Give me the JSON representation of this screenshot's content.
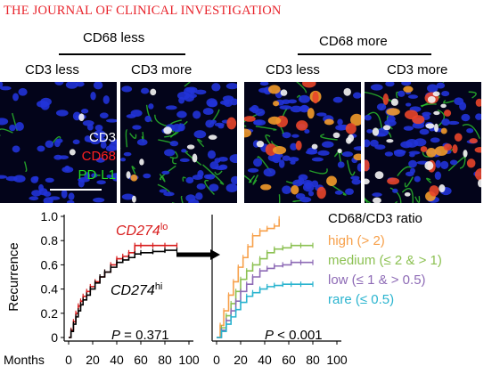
{
  "header": {
    "journal": "THE JOURNAL OF CLINICAL INVESTIGATION"
  },
  "groups": [
    {
      "label": "CD68 less",
      "columns": [
        "CD3 less",
        "CD3 more"
      ]
    },
    {
      "label": "CD68 more",
      "columns": [
        "CD3 less",
        "CD3 more"
      ]
    }
  ],
  "legend_channels": [
    {
      "label": "CD3",
      "color": "#ffffff"
    },
    {
      "label": "CD68",
      "color": "#ff2020"
    },
    {
      "label": "PD-L1",
      "color": "#22dd22"
    }
  ],
  "colors": {
    "journal": "#e8232b",
    "cd274lo": "#d81c1c",
    "cd274hi": "#000000",
    "high": "#f7a04a",
    "medium": "#8cc152",
    "low": "#8e6bb6",
    "rare": "#2ab4cf"
  },
  "chart_data": [
    {
      "type": "line",
      "subtype": "kaplan-meier",
      "ylabel": "Recurrence",
      "xlabel": "Months",
      "xlim": [
        0,
        100
      ],
      "ylim": [
        0,
        1.0
      ],
      "xticks": [
        "0",
        "20",
        "40",
        "60",
        "80",
        "100"
      ],
      "yticks": [
        "0",
        "0.2",
        "0.4",
        "0.6",
        "0.8",
        "1.0"
      ],
      "annotation": {
        "p_label": "P",
        "p_value": "= 0.371"
      },
      "series": [
        {
          "name": "CD274lo",
          "name_base": "CD274",
          "name_sup": "lo",
          "color": "#d81c1c",
          "x": [
            0,
            2,
            4,
            6,
            8,
            10,
            12,
            15,
            18,
            22,
            26,
            30,
            35,
            40,
            45,
            50,
            55,
            60,
            70,
            80,
            90
          ],
          "y": [
            0,
            0.06,
            0.13,
            0.2,
            0.26,
            0.3,
            0.34,
            0.38,
            0.42,
            0.46,
            0.5,
            0.54,
            0.6,
            0.65,
            0.67,
            0.7,
            0.76,
            0.76,
            0.76,
            0.76,
            0.76
          ]
        },
        {
          "name": "CD274hi",
          "name_base": "CD274",
          "name_sup": "hi",
          "color": "#000000",
          "x": [
            0,
            2,
            4,
            6,
            8,
            10,
            12,
            15,
            18,
            22,
            26,
            30,
            35,
            40,
            45,
            50,
            55,
            60,
            70,
            80,
            90
          ],
          "y": [
            0,
            0.05,
            0.11,
            0.17,
            0.22,
            0.27,
            0.31,
            0.35,
            0.4,
            0.45,
            0.5,
            0.54,
            0.58,
            0.62,
            0.64,
            0.66,
            0.69,
            0.7,
            0.71,
            0.72,
            0.72
          ]
        }
      ]
    },
    {
      "type": "line",
      "subtype": "kaplan-meier",
      "xlim": [
        0,
        100
      ],
      "ylim": [
        0,
        1.0
      ],
      "xticks": [
        "0",
        "20",
        "40",
        "60",
        "80",
        "100"
      ],
      "annotation": {
        "p_label": "P",
        "p_value": "< 0.001"
      },
      "legend_title": "CD68/CD3 ratio",
      "series": [
        {
          "name": "high (> 2)",
          "color": "#f7a04a",
          "x": [
            0,
            3,
            6,
            10,
            14,
            18,
            22,
            26,
            30,
            36,
            42,
            48,
            52
          ],
          "y": [
            0,
            0.1,
            0.22,
            0.35,
            0.46,
            0.58,
            0.66,
            0.75,
            0.84,
            0.88,
            0.9,
            0.92,
            0.98
          ]
        },
        {
          "name": "medium (≤ 2 & > 1)",
          "color": "#8cc152",
          "x": [
            0,
            4,
            8,
            12,
            16,
            20,
            25,
            30,
            36,
            42,
            48,
            55,
            62,
            70,
            80
          ],
          "y": [
            0,
            0.08,
            0.18,
            0.28,
            0.38,
            0.48,
            0.55,
            0.6,
            0.65,
            0.7,
            0.73,
            0.74,
            0.76,
            0.76,
            0.76
          ]
        },
        {
          "name": "low (≤ 1 & > 0.5)",
          "color": "#8e6bb6",
          "x": [
            0,
            4,
            8,
            12,
            16,
            20,
            25,
            30,
            36,
            42,
            48,
            55,
            62,
            70,
            80
          ],
          "y": [
            0,
            0.06,
            0.14,
            0.22,
            0.3,
            0.38,
            0.44,
            0.5,
            0.55,
            0.57,
            0.59,
            0.6,
            0.62,
            0.62,
            0.62
          ]
        },
        {
          "name": "rare (≤ 0.5)",
          "color": "#2ab4cf",
          "x": [
            0,
            4,
            8,
            12,
            16,
            20,
            25,
            30,
            36,
            42,
            48,
            55,
            62,
            70,
            80
          ],
          "y": [
            0,
            0.05,
            0.11,
            0.17,
            0.23,
            0.29,
            0.34,
            0.37,
            0.4,
            0.42,
            0.43,
            0.44,
            0.44,
            0.44,
            0.44
          ]
        }
      ]
    }
  ]
}
